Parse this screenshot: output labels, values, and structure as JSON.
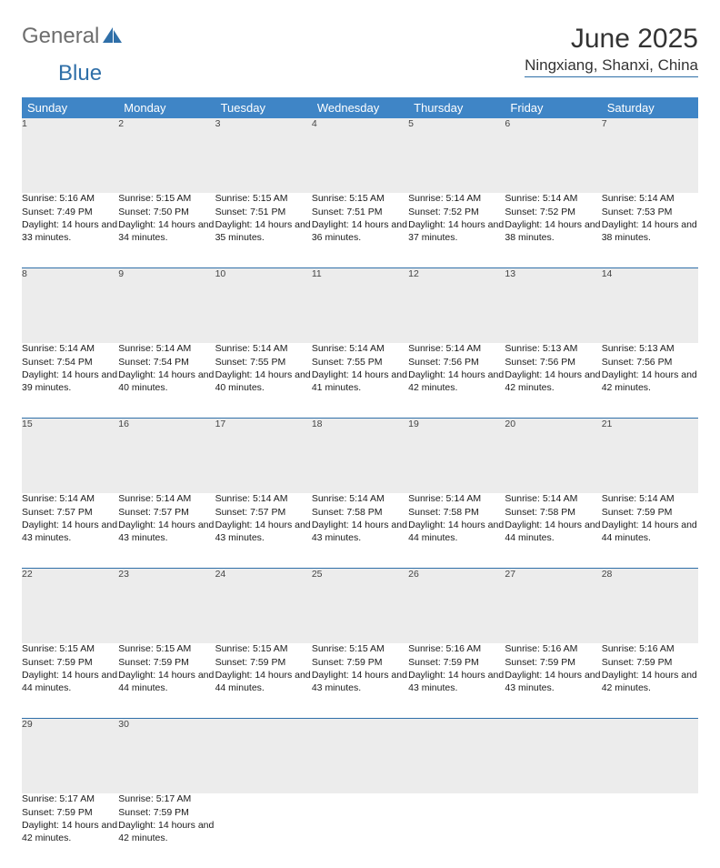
{
  "logo": {
    "word1": "General",
    "word2": "Blue"
  },
  "title": "June 2025",
  "location": "Ningxiang, Shanxi, China",
  "colors": {
    "header_blue": "#3f85c6",
    "accent_blue": "#2f6fa8",
    "stripe": "#ececec",
    "background": "#ffffff",
    "text": "#1a1a1a"
  },
  "weekdays": [
    "Sunday",
    "Monday",
    "Tuesday",
    "Wednesday",
    "Thursday",
    "Friday",
    "Saturday"
  ],
  "weeks": [
    [
      {
        "day": "1",
        "sunrise": "Sunrise: 5:16 AM",
        "sunset": "Sunset: 7:49 PM",
        "daylight": "Daylight: 14 hours and 33 minutes."
      },
      {
        "day": "2",
        "sunrise": "Sunrise: 5:15 AM",
        "sunset": "Sunset: 7:50 PM",
        "daylight": "Daylight: 14 hours and 34 minutes."
      },
      {
        "day": "3",
        "sunrise": "Sunrise: 5:15 AM",
        "sunset": "Sunset: 7:51 PM",
        "daylight": "Daylight: 14 hours and 35 minutes."
      },
      {
        "day": "4",
        "sunrise": "Sunrise: 5:15 AM",
        "sunset": "Sunset: 7:51 PM",
        "daylight": "Daylight: 14 hours and 36 minutes."
      },
      {
        "day": "5",
        "sunrise": "Sunrise: 5:14 AM",
        "sunset": "Sunset: 7:52 PM",
        "daylight": "Daylight: 14 hours and 37 minutes."
      },
      {
        "day": "6",
        "sunrise": "Sunrise: 5:14 AM",
        "sunset": "Sunset: 7:52 PM",
        "daylight": "Daylight: 14 hours and 38 minutes."
      },
      {
        "day": "7",
        "sunrise": "Sunrise: 5:14 AM",
        "sunset": "Sunset: 7:53 PM",
        "daylight": "Daylight: 14 hours and 38 minutes."
      }
    ],
    [
      {
        "day": "8",
        "sunrise": "Sunrise: 5:14 AM",
        "sunset": "Sunset: 7:54 PM",
        "daylight": "Daylight: 14 hours and 39 minutes."
      },
      {
        "day": "9",
        "sunrise": "Sunrise: 5:14 AM",
        "sunset": "Sunset: 7:54 PM",
        "daylight": "Daylight: 14 hours and 40 minutes."
      },
      {
        "day": "10",
        "sunrise": "Sunrise: 5:14 AM",
        "sunset": "Sunset: 7:55 PM",
        "daylight": "Daylight: 14 hours and 40 minutes."
      },
      {
        "day": "11",
        "sunrise": "Sunrise: 5:14 AM",
        "sunset": "Sunset: 7:55 PM",
        "daylight": "Daylight: 14 hours and 41 minutes."
      },
      {
        "day": "12",
        "sunrise": "Sunrise: 5:14 AM",
        "sunset": "Sunset: 7:56 PM",
        "daylight": "Daylight: 14 hours and 42 minutes."
      },
      {
        "day": "13",
        "sunrise": "Sunrise: 5:13 AM",
        "sunset": "Sunset: 7:56 PM",
        "daylight": "Daylight: 14 hours and 42 minutes."
      },
      {
        "day": "14",
        "sunrise": "Sunrise: 5:13 AM",
        "sunset": "Sunset: 7:56 PM",
        "daylight": "Daylight: 14 hours and 42 minutes."
      }
    ],
    [
      {
        "day": "15",
        "sunrise": "Sunrise: 5:14 AM",
        "sunset": "Sunset: 7:57 PM",
        "daylight": "Daylight: 14 hours and 43 minutes."
      },
      {
        "day": "16",
        "sunrise": "Sunrise: 5:14 AM",
        "sunset": "Sunset: 7:57 PM",
        "daylight": "Daylight: 14 hours and 43 minutes."
      },
      {
        "day": "17",
        "sunrise": "Sunrise: 5:14 AM",
        "sunset": "Sunset: 7:57 PM",
        "daylight": "Daylight: 14 hours and 43 minutes."
      },
      {
        "day": "18",
        "sunrise": "Sunrise: 5:14 AM",
        "sunset": "Sunset: 7:58 PM",
        "daylight": "Daylight: 14 hours and 43 minutes."
      },
      {
        "day": "19",
        "sunrise": "Sunrise: 5:14 AM",
        "sunset": "Sunset: 7:58 PM",
        "daylight": "Daylight: 14 hours and 44 minutes."
      },
      {
        "day": "20",
        "sunrise": "Sunrise: 5:14 AM",
        "sunset": "Sunset: 7:58 PM",
        "daylight": "Daylight: 14 hours and 44 minutes."
      },
      {
        "day": "21",
        "sunrise": "Sunrise: 5:14 AM",
        "sunset": "Sunset: 7:59 PM",
        "daylight": "Daylight: 14 hours and 44 minutes."
      }
    ],
    [
      {
        "day": "22",
        "sunrise": "Sunrise: 5:15 AM",
        "sunset": "Sunset: 7:59 PM",
        "daylight": "Daylight: 14 hours and 44 minutes."
      },
      {
        "day": "23",
        "sunrise": "Sunrise: 5:15 AM",
        "sunset": "Sunset: 7:59 PM",
        "daylight": "Daylight: 14 hours and 44 minutes."
      },
      {
        "day": "24",
        "sunrise": "Sunrise: 5:15 AM",
        "sunset": "Sunset: 7:59 PM",
        "daylight": "Daylight: 14 hours and 44 minutes."
      },
      {
        "day": "25",
        "sunrise": "Sunrise: 5:15 AM",
        "sunset": "Sunset: 7:59 PM",
        "daylight": "Daylight: 14 hours and 43 minutes."
      },
      {
        "day": "26",
        "sunrise": "Sunrise: 5:16 AM",
        "sunset": "Sunset: 7:59 PM",
        "daylight": "Daylight: 14 hours and 43 minutes."
      },
      {
        "day": "27",
        "sunrise": "Sunrise: 5:16 AM",
        "sunset": "Sunset: 7:59 PM",
        "daylight": "Daylight: 14 hours and 43 minutes."
      },
      {
        "day": "28",
        "sunrise": "Sunrise: 5:16 AM",
        "sunset": "Sunset: 7:59 PM",
        "daylight": "Daylight: 14 hours and 42 minutes."
      }
    ],
    [
      {
        "day": "29",
        "sunrise": "Sunrise: 5:17 AM",
        "sunset": "Sunset: 7:59 PM",
        "daylight": "Daylight: 14 hours and 42 minutes."
      },
      {
        "day": "30",
        "sunrise": "Sunrise: 5:17 AM",
        "sunset": "Sunset: 7:59 PM",
        "daylight": "Daylight: 14 hours and 42 minutes."
      },
      null,
      null,
      null,
      null,
      null
    ]
  ]
}
